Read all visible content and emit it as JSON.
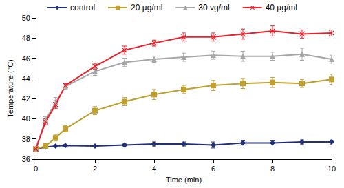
{
  "chart_data": {
    "type": "line",
    "x_label": "Time (min)",
    "y_label": "Temperature (°C)",
    "x": [
      0,
      0.33,
      0.67,
      1,
      2,
      3,
      4,
      5,
      6,
      7,
      8,
      9,
      10
    ],
    "xlim": [
      0,
      10
    ],
    "xticks": [
      0,
      2,
      4,
      6,
      8,
      10
    ],
    "ylim": [
      36,
      50
    ],
    "yticks": [
      36,
      38,
      40,
      42,
      44,
      46,
      48,
      50
    ],
    "grid": false,
    "legend": "top",
    "series": [
      {
        "name": "control",
        "color": "#1f2f7a",
        "marker": "diamond",
        "values": [
          37,
          37.2,
          37.3,
          37.35,
          37.3,
          37.4,
          37.5,
          37.5,
          37.4,
          37.6,
          37.6,
          37.7,
          37.7
        ],
        "errors": [
          0.1,
          0.1,
          0.1,
          0.1,
          0.1,
          0.1,
          0.2,
          0.2,
          0.3,
          0.2,
          0.2,
          0.2,
          0.2
        ]
      },
      {
        "name": "20 µg/ml",
        "color": "#bfa02e",
        "marker": "square",
        "values": [
          37,
          37.3,
          38.1,
          39.0,
          40.8,
          41.7,
          42.4,
          42.9,
          43.3,
          43.5,
          43.6,
          43.5,
          43.9
        ],
        "errors": [
          0.1,
          0.2,
          0.3,
          0.3,
          0.4,
          0.4,
          0.5,
          0.4,
          0.5,
          0.5,
          0.5,
          0.4,
          0.5
        ]
      },
      {
        "name": "30 vg/ml",
        "color": "#a6a6a6",
        "marker": "triangle",
        "values": [
          37,
          39.9,
          41.6,
          43.2,
          44.7,
          45.6,
          45.9,
          46.1,
          46.3,
          46.2,
          46.2,
          46.4,
          45.9
        ],
        "errors": [
          0.1,
          0.3,
          0.5,
          0.3,
          0.4,
          0.4,
          0.3,
          0.4,
          0.4,
          0.5,
          0.4,
          0.6,
          0.4
        ]
      },
      {
        "name": "40 µg/ml",
        "color": "#e8202a",
        "marker": "x",
        "values": [
          37,
          39.7,
          41.4,
          43.3,
          45.2,
          46.8,
          47.5,
          48.1,
          48.1,
          48.4,
          48.7,
          48.4,
          48.5
        ],
        "errors": [
          0.1,
          0.3,
          0.4,
          0.2,
          0.3,
          0.4,
          0.3,
          0.4,
          0.4,
          0.5,
          0.5,
          0.4,
          0.3
        ]
      }
    ]
  }
}
